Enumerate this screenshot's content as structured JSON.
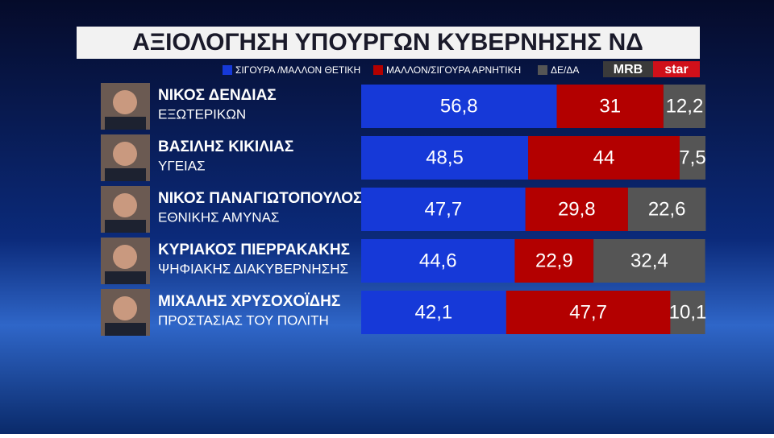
{
  "chart_data": {
    "type": "stacked-bar",
    "title": "ΑΞΙΟΛΟΓΗΣΗ ΥΠΟΥΡΓΩΝ ΚΥΒΕΡΝΗΣΗΣ ΝΔ",
    "logos": [
      "MRB",
      "star"
    ],
    "categories": [
      "ΝΙΚΟΣ ΔΕΝΔΙΑΣ",
      "ΒΑΣΙΛΗΣ ΚΙΚΙΛΙΑΣ",
      "ΝΙΚΟΣ ΠΑΝΑΓΙΩΤΟΠΟΥΛΟΣ",
      "ΚΥΡΙΑΚΟΣ ΠΙΕΡΡΑΚΑΚΗΣ",
      "ΜΙΧΑΛΗΣ ΧΡΥΣΟΧΟΪΔΗΣ"
    ],
    "ministries": [
      "ΕΞΩΤΕΡΙΚΩΝ",
      "ΥΓΕΙΑΣ",
      "ΕΘΝΙΚΗΣ ΑΜΥΝΑΣ",
      "ΨΗΦΙΑΚΗΣ ΔΙΑΚΥΒΕΡΝΗΣΗΣ",
      "ΠΡΟΣΤΑΣΙΑΣ ΤΟΥ ΠΟΛΙΤΗ"
    ],
    "xlim": [
      0,
      100
    ],
    "series": [
      {
        "name": "ΣΙΓΟΥΡΑ /ΜΑΛΛΟΝ ΘΕΤΙΚΗ",
        "color": "#1639d8",
        "values": [
          56.8,
          48.5,
          47.7,
          44.6,
          42.1
        ],
        "value_labels": [
          "56,8",
          "48,5",
          "47,7",
          "44,6",
          "42,1"
        ]
      },
      {
        "name": "ΜΑΛΛΟΝ/ΣΙΓΟΥΡΑ ΑΡΝΗΤΙΚΗ",
        "color": "#b30000",
        "values": [
          31,
          44,
          29.8,
          22.9,
          47.7
        ],
        "value_labels": [
          "31",
          "44",
          "29,8",
          "22,9",
          "47,7"
        ]
      },
      {
        "name": "ΔΕ/ΔΑ",
        "color": "#555555",
        "values": [
          12.2,
          7.5,
          22.6,
          32.4,
          10.1
        ],
        "value_labels": [
          "12,2",
          "7,5",
          "22,6",
          "32,4",
          "10,1"
        ]
      }
    ]
  }
}
